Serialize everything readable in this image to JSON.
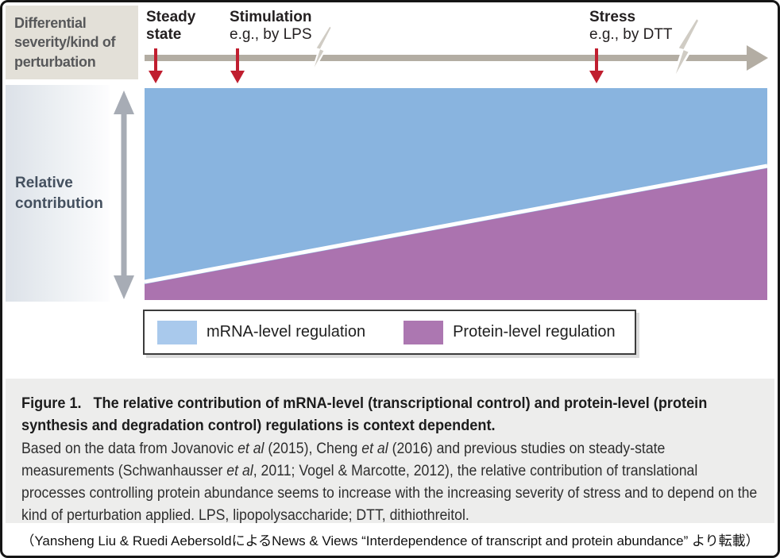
{
  "colors": {
    "blue_area": "#89b4df",
    "purple_area": "#ab73af",
    "divider_white": "#ffffff",
    "red_arrow": "#c01e2f",
    "axis_gray": "#b3ada3",
    "bolt_gray": "#d0ccc4",
    "beige_box": "#e3e0d8",
    "v_arrow_gray": "#a7acb5"
  },
  "header": {
    "perturbation_label": "Differential severity/kind of perturbation",
    "markers": [
      {
        "title": "Steady state",
        "subtitle": ""
      },
      {
        "title": "Stimulation",
        "subtitle": "e.g., by LPS"
      },
      {
        "title": "Stress",
        "subtitle": "e.g., by DTT"
      }
    ]
  },
  "y_axis_label": "Relative contribution",
  "legend": {
    "items": [
      {
        "label": "mRNA-level regulation",
        "color": "#a9c9ec"
      },
      {
        "label": "Protein-level regulation",
        "color": "#ac77b1"
      }
    ]
  },
  "caption": {
    "figure_label": "Figure 1.",
    "title": "The relative contribution of mRNA-level (transcriptional control) and protein-level (protein synthesis and degradation control) regulations is context dependent.",
    "body_segments": [
      {
        "t": "Based on the data from Jovanovic ",
        "i": false
      },
      {
        "t": "et al",
        "i": true
      },
      {
        "t": " (2015), Cheng ",
        "i": false
      },
      {
        "t": "et al",
        "i": true
      },
      {
        "t": " (2016) and previous studies on steady-state measurements (Schwanhausser ",
        "i": false
      },
      {
        "t": "et al",
        "i": true
      },
      {
        "t": ", 2011; Vogel & Marcotte, 2012), the relative contribution of translational processes controlling protein abundance seems to increase with the increasing severity of stress and to depend on the kind of perturbation applied. LPS, lipopolysaccharide; DTT, dithiothreitol.",
        "i": false
      }
    ]
  },
  "footer": {
    "text": "（Yansheng Liu & Ruedi AebersoldによるNews & Views “Interdependence of transcript and protein abundance” より転載）"
  },
  "chart_data": {
    "type": "area",
    "title": "Relative contribution of mRNA-level vs protein-level regulation across perturbation severity",
    "xlabel": "Differential severity/kind of perturbation",
    "ylabel": "Relative contribution",
    "x_qualitative_ticks": [
      "Steady state",
      "Stimulation (e.g., by LPS)",
      "Stress (e.g., by DTT)"
    ],
    "x_range": [
      0,
      1
    ],
    "y_range": [
      0,
      1
    ],
    "grid": false,
    "legend_position": "below",
    "series": [
      {
        "name": "mRNA-level regulation",
        "color": "#89b4df",
        "x": [
          0,
          1
        ],
        "values": [
          0.93,
          0.38
        ]
      },
      {
        "name": "Protein-level regulation",
        "color": "#ab73af",
        "x": [
          0,
          1
        ],
        "values": [
          0.07,
          0.62
        ]
      }
    ]
  }
}
